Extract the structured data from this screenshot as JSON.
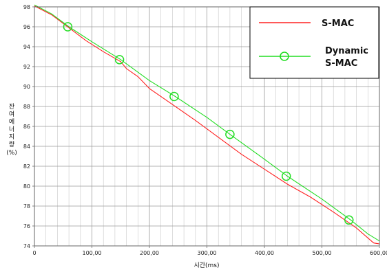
{
  "chart_data": {
    "type": "line",
    "title": "",
    "xlabel": "시간(ms)",
    "ylabel_chars": [
      "잔",
      "여",
      "에",
      "너",
      "지",
      "량"
    ],
    "ylabel_unit": "(%)",
    "xlim": [
      0,
      600
    ],
    "ylim": [
      74,
      98
    ],
    "grid": true,
    "legend_position": "top-right",
    "x_ticks": [
      "0",
      "100,00",
      "200,00",
      "300,00",
      "400,00",
      "500,00",
      "600,00"
    ],
    "x_tick_values": [
      0,
      100,
      200,
      300,
      400,
      500,
      600
    ],
    "x_minor_step": 20,
    "y_ticks": [
      "74",
      "76",
      "78",
      "80",
      "82",
      "84",
      "86",
      "88",
      "90",
      "92",
      "94",
      "96",
      "98"
    ],
    "y_tick_values": [
      74,
      76,
      78,
      80,
      82,
      84,
      86,
      88,
      90,
      92,
      94,
      96,
      98
    ],
    "series": [
      {
        "name": "S-MAC",
        "color": "#ff2020",
        "marker": "none",
        "x": [
          0,
          30,
          60,
          90,
          120,
          150,
          160,
          180,
          200,
          240,
          280,
          320,
          360,
          400,
          440,
          480,
          520,
          560,
          590,
          600
        ],
        "y": [
          98.1,
          97.2,
          95.9,
          94.6,
          93.5,
          92.5,
          91.8,
          91.0,
          89.8,
          88.2,
          86.6,
          84.9,
          83.2,
          81.7,
          80.2,
          78.9,
          77.4,
          75.8,
          74.3,
          74.2
        ]
      },
      {
        "name": "Dynamic S-MAC",
        "color": "#22dd22",
        "marker": "circle",
        "x": [
          0,
          30,
          60,
          100,
          150,
          200,
          245,
          300,
          340,
          400,
          440,
          500,
          550,
          580,
          600
        ],
        "y": [
          98.2,
          97.3,
          96.0,
          94.5,
          92.7,
          90.6,
          89.0,
          86.9,
          85.2,
          82.7,
          81.0,
          78.7,
          76.6,
          75.2,
          74.5
        ],
        "marker_x": [
          58,
          148,
          243,
          340,
          438,
          547
        ],
        "marker_y": [
          96.0,
          92.7,
          89.0,
          85.2,
          81.0,
          76.6
        ]
      }
    ]
  },
  "legend": {
    "items": [
      {
        "label_lines": [
          "S-MAC"
        ]
      },
      {
        "label_lines": [
          "Dynamic",
          "S-MAC"
        ]
      }
    ]
  }
}
